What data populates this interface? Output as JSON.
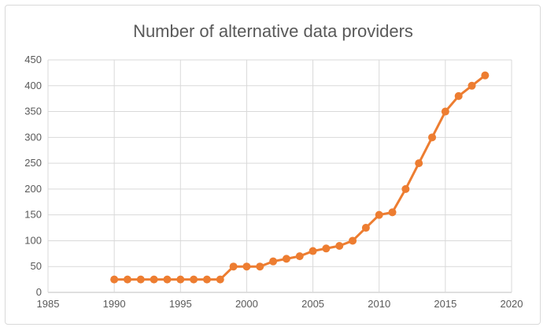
{
  "chart_data": {
    "type": "line",
    "title": "Number of alternative data providers",
    "xlabel": "",
    "ylabel": "",
    "xlim": [
      1985,
      2020
    ],
    "ylim": [
      0,
      450
    ],
    "xticks": [
      1985,
      1990,
      1995,
      2000,
      2005,
      2010,
      2015,
      2020
    ],
    "yticks": [
      0,
      50,
      100,
      150,
      200,
      250,
      300,
      350,
      400,
      450
    ],
    "grid": true,
    "legend": "none",
    "color": "#ed7d31",
    "x": [
      1990,
      1991,
      1992,
      1993,
      1994,
      1995,
      1996,
      1997,
      1998,
      1999,
      2000,
      2001,
      2002,
      2003,
      2004,
      2005,
      2006,
      2007,
      2008,
      2009,
      2010,
      2011,
      2012,
      2013,
      2014,
      2015,
      2016,
      2017,
      2018
    ],
    "y": [
      25,
      25,
      25,
      25,
      25,
      25,
      25,
      25,
      25,
      50,
      50,
      50,
      60,
      65,
      70,
      80,
      85,
      90,
      100,
      125,
      150,
      155,
      200,
      250,
      300,
      350,
      380,
      400,
      420
    ]
  }
}
